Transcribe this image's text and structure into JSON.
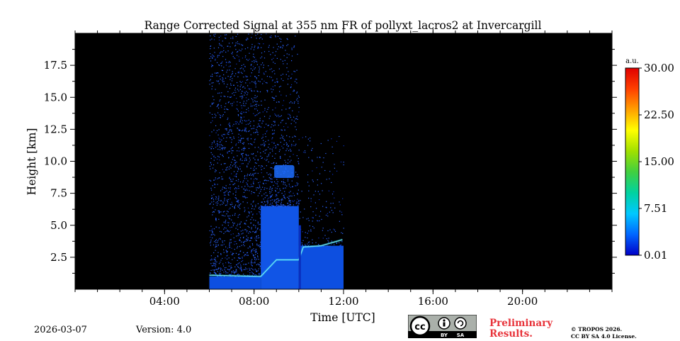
{
  "chart_data": {
    "type": "heatmap",
    "title": "Range Corrected Signal at 355 nm FR of pollyxt_lacros2 at Invercargill",
    "xlabel": "Time [UTC]",
    "ylabel": "Height [km]",
    "xlim": [
      0,
      24
    ],
    "ylim": [
      0,
      20
    ],
    "x_ticks": [
      {
        "value": 4,
        "label": "04:00"
      },
      {
        "value": 8,
        "label": "08:00"
      },
      {
        "value": 12,
        "label": "12:00"
      },
      {
        "value": 16,
        "label": "16:00"
      },
      {
        "value": 20,
        "label": "20:00"
      }
    ],
    "x_minor_step": 1,
    "y_ticks": [
      {
        "value": 2.5,
        "label": "2.5"
      },
      {
        "value": 5.0,
        "label": "5.0"
      },
      {
        "value": 7.5,
        "label": "7.5"
      },
      {
        "value": 10.0,
        "label": "10.0"
      },
      {
        "value": 12.5,
        "label": "12.5"
      },
      {
        "value": 15.0,
        "label": "15.0"
      },
      {
        "value": 17.5,
        "label": "17.5"
      }
    ],
    "background": "#000000",
    "colorbar": {
      "unit": "a.u.",
      "min": 0.01,
      "max": 30.0,
      "ticks": [
        {
          "value": 0.01,
          "label": "0.01"
        },
        {
          "value": 7.51,
          "label": "7.51"
        },
        {
          "value": 15.0,
          "label": "15.00"
        },
        {
          "value": 22.5,
          "label": "22.50"
        },
        {
          "value": 30.0,
          "label": "30.00"
        }
      ],
      "colors": [
        "#0000c8",
        "#0066ff",
        "#00c8ff",
        "#00d2a0",
        "#40d040",
        "#a0e000",
        "#ffff00",
        "#ffa000",
        "#ff4000",
        "#e00000"
      ]
    },
    "data_periods": [
      {
        "start": 6.0,
        "end": 8.3,
        "dense_top_km": 1.0,
        "sparse_top_km": 20.0
      },
      {
        "start": 8.3,
        "end": 10.0,
        "dense_top_km": 6.5,
        "sparse_top_km": 20.0
      },
      {
        "start": 10.0,
        "end": 12.0,
        "dense_top_km": 3.4,
        "sparse_top_km": 12.0
      }
    ],
    "boundary_layer_top_km": [
      {
        "time": 6.0,
        "height": 1.1
      },
      {
        "time": 8.3,
        "height": 1.0
      },
      {
        "time": 9.0,
        "height": 2.3
      },
      {
        "time": 10.0,
        "height": 2.3
      },
      {
        "time": 10.2,
        "height": 3.3
      },
      {
        "time": 11.0,
        "height": 3.4
      },
      {
        "time": 12.0,
        "height": 3.9
      }
    ],
    "cloud_patch": {
      "time_start": 8.9,
      "time_end": 9.8,
      "bottom_km": 8.7,
      "top_km": 9.7
    }
  },
  "footer": {
    "date": "2026-03-07",
    "version": "Version: 4.0",
    "preliminary_line1": "Preliminary",
    "preliminary_line2": "Results.",
    "copyright_line1": "© TROPOS 2026.",
    "copyright_line2": "CC BY SA 4.0 License.",
    "license_badge_text": "cc",
    "license_by": "BY",
    "license_sa": "SA"
  }
}
